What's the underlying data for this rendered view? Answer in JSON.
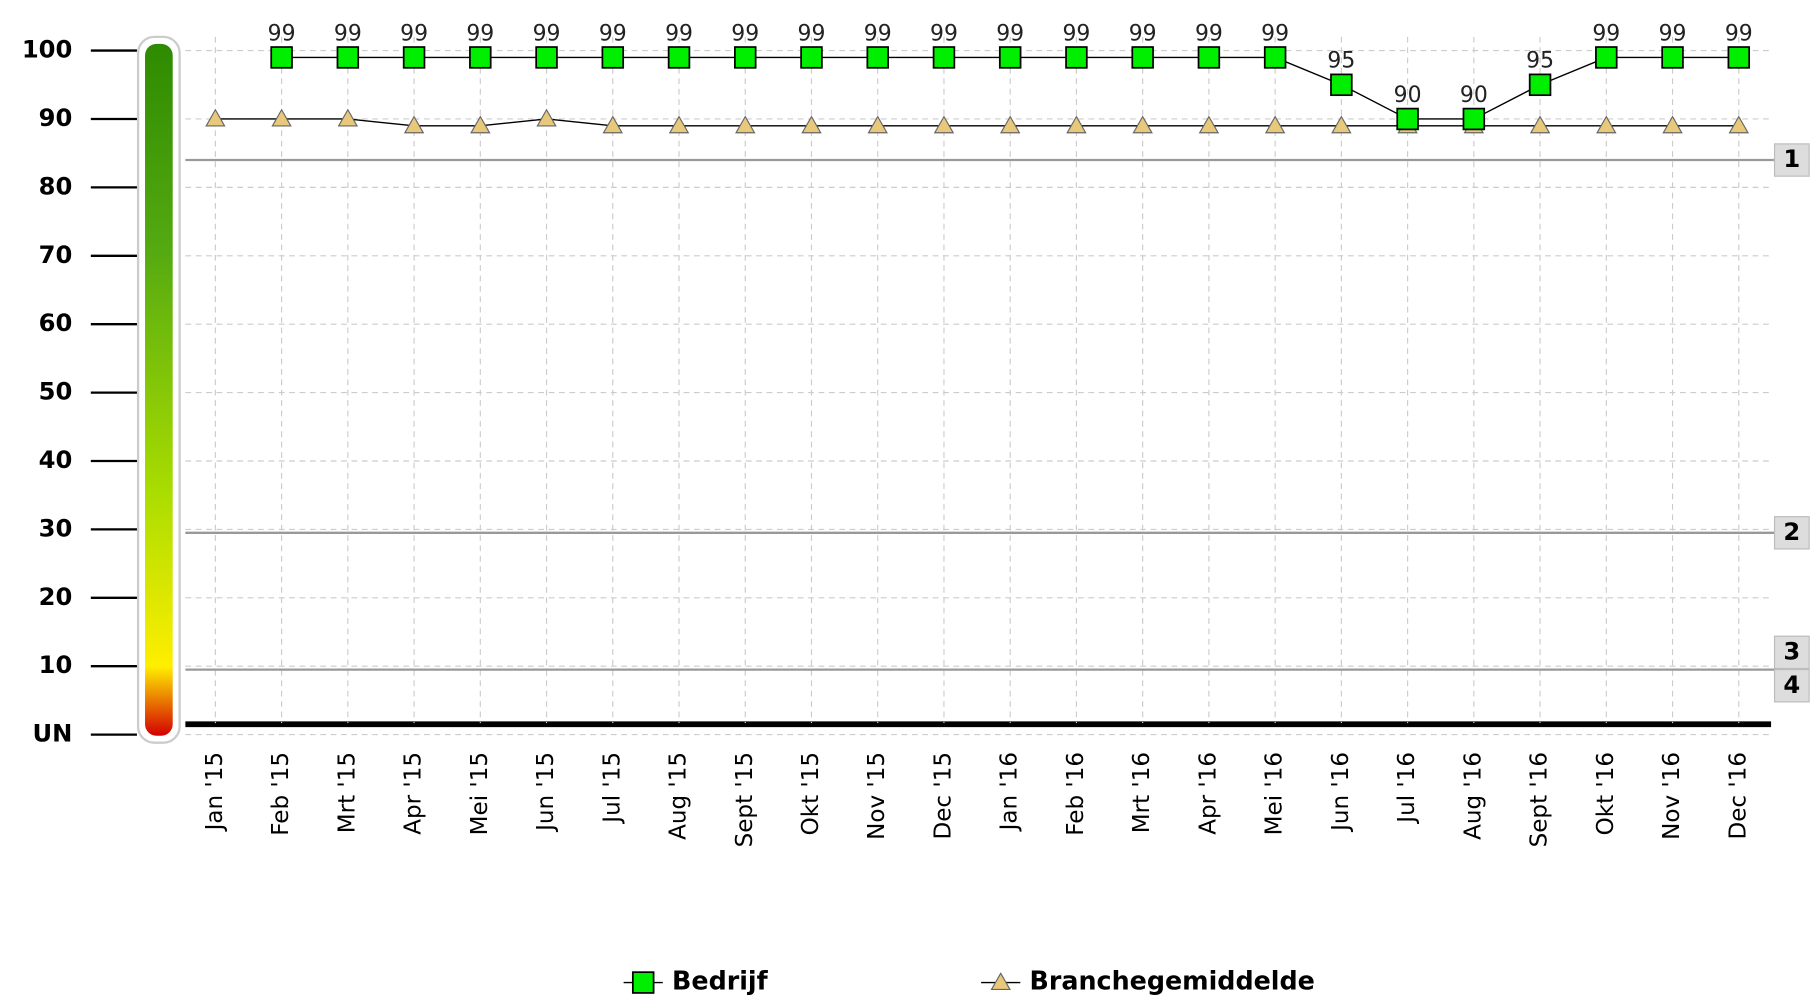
{
  "chart_data": {
    "type": "line",
    "categories": [
      "Jan '15",
      "Feb '15",
      "Mrt '15",
      "Apr '15",
      "Mei '15",
      "Jun '15",
      "Jul '15",
      "Aug '15",
      "Sept '15",
      "Okt '15",
      "Nov '15",
      "Dec '15",
      "Jan '16",
      "Feb '16",
      "Mrt '16",
      "Apr '16",
      "Mei '16",
      "Jun '16",
      "Jul '16",
      "Aug '16",
      "Sept '16",
      "Okt '16",
      "Nov '16",
      "Dec '16"
    ],
    "series": [
      {
        "name": "Bedrijf",
        "color": "#00ee00",
        "marker": "square",
        "values": [
          null,
          99,
          99,
          99,
          99,
          99,
          99,
          99,
          99,
          99,
          99,
          99,
          99,
          99,
          99,
          99,
          99,
          95,
          90,
          90,
          95,
          99,
          99,
          99
        ]
      },
      {
        "name": "Branchegemiddelde",
        "color": "#e8c87a",
        "marker": "triangle",
        "values": [
          90,
          90,
          90,
          89,
          89,
          90,
          89,
          89,
          89,
          89,
          89,
          89,
          89,
          89,
          89,
          89,
          89,
          89,
          89,
          89,
          89,
          89,
          89,
          89
        ]
      }
    ],
    "ylim": [
      0,
      102
    ],
    "yticks": [
      {
        "value": 0,
        "label": "UN"
      },
      10,
      20,
      30,
      40,
      50,
      60,
      70,
      80,
      90,
      100
    ],
    "grid": true,
    "thresholds": [
      {
        "label": "1",
        "value": 84
      },
      {
        "label": "2",
        "value": 29.5
      },
      {
        "label": "3",
        "value": 9.5
      },
      {
        "label": "4",
        "value": 9.5
      }
    ],
    "legend": "bottom"
  }
}
